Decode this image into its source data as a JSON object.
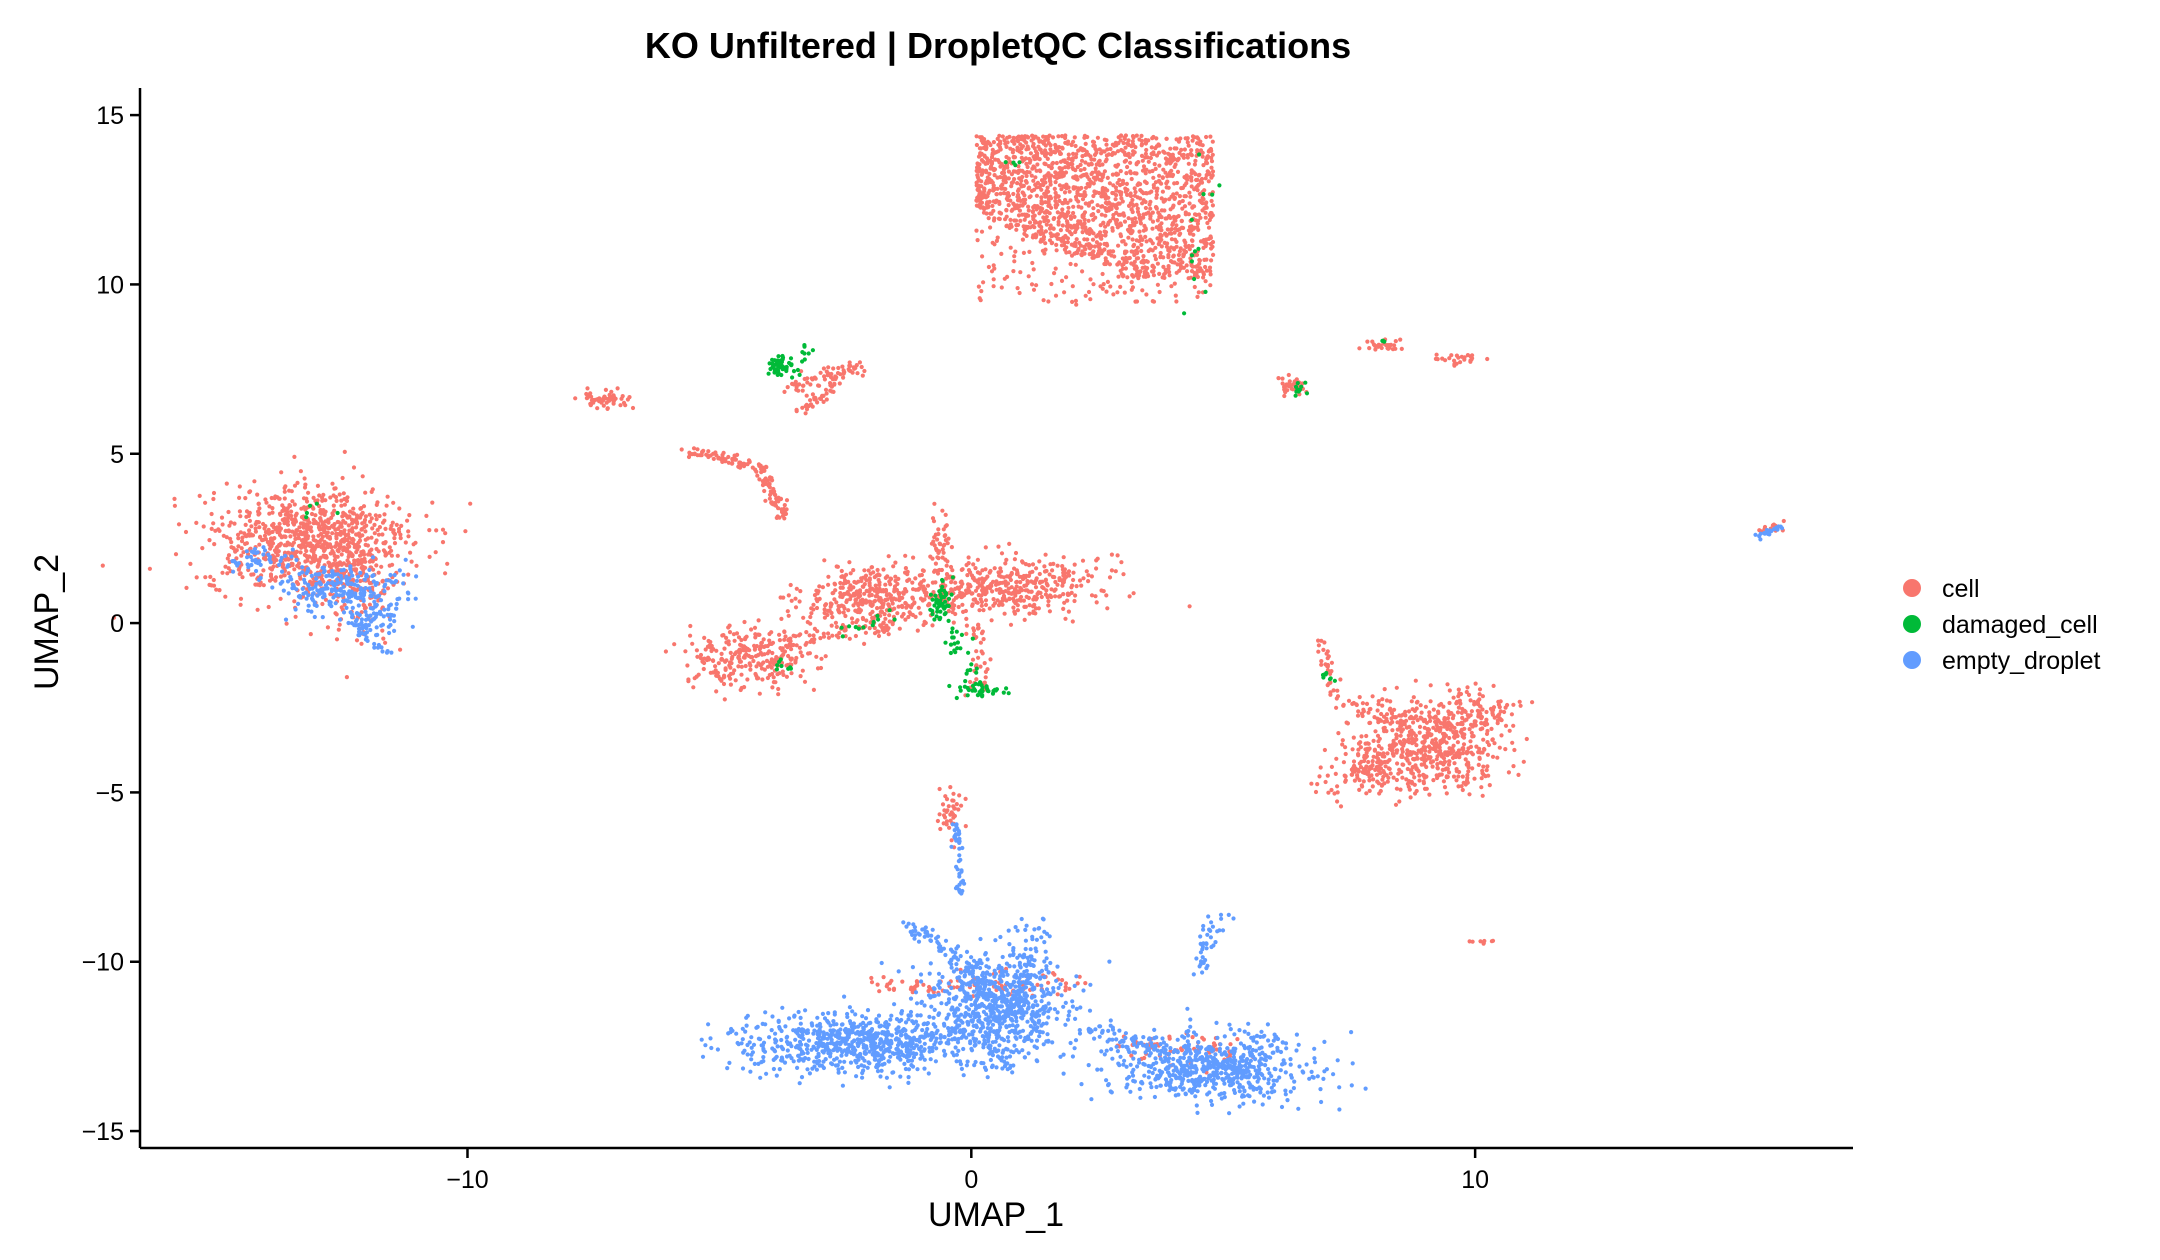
{
  "chart_data": {
    "type": "scatter",
    "title": "KO Unfiltered | DropletQC Classifications",
    "xlabel": "UMAP_1",
    "ylabel": "UMAP_2",
    "xlim": [
      -16.5,
      17.5
    ],
    "ylim": [
      -15.5,
      15.8
    ],
    "x_ticks": [
      -10,
      0,
      10
    ],
    "x_tick_labels": [
      "−10",
      "0",
      "10"
    ],
    "y_ticks": [
      -15,
      -10,
      -5,
      0,
      5,
      10,
      15
    ],
    "y_tick_labels": [
      "−15",
      "−10",
      "−5",
      "0",
      "5",
      "10",
      "15"
    ],
    "grid": false,
    "legend_position": "right",
    "series": [
      {
        "name": "cell",
        "color": "#F8766D",
        "clusters": [
          {
            "cx": 2.6,
            "cy": 12.0,
            "sx": 1.7,
            "sy": 1.3,
            "n": 1800,
            "shape": "rect",
            "x0": 0.1,
            "x1": 4.8,
            "y0": 9.4,
            "y1": 14.4
          },
          {
            "cx": -13.1,
            "cy": 2.4,
            "sx": 1.0,
            "sy": 0.8,
            "n": 900,
            "shape": "ellipse"
          },
          {
            "cx": -12.2,
            "cy": 1.0,
            "sx": 0.4,
            "sy": 0.8,
            "n": 120,
            "shape": "ellipse"
          },
          {
            "cx": -2.0,
            "cy": 0.7,
            "sx": 0.7,
            "sy": 0.45,
            "n": 350,
            "shape": "ellipse"
          },
          {
            "cx": 0.6,
            "cy": 1.1,
            "sx": 1.0,
            "sy": 0.45,
            "n": 450,
            "shape": "ellipse"
          },
          {
            "cx": -4.4,
            "cy": -1.0,
            "sx": 0.6,
            "sy": 0.45,
            "n": 280,
            "shape": "ellipse"
          },
          {
            "cx": -0.6,
            "cy": 2.4,
            "sx": 0.1,
            "sy": 0.5,
            "n": 40,
            "shape": "ellipse"
          },
          {
            "cx": 9.3,
            "cy": -3.5,
            "sx": 0.65,
            "sy": 0.65,
            "n": 500,
            "shape": "ellipse"
          },
          {
            "cx": 8.1,
            "cy": -4.2,
            "sx": 0.5,
            "sy": 0.45,
            "n": 120,
            "shape": "ellipse"
          },
          {
            "cx": 10.2,
            "cy": -2.6,
            "sx": 0.4,
            "sy": 0.25,
            "n": 60,
            "shape": "ellipse"
          },
          {
            "cx": -7.3,
            "cy": 6.6,
            "sx": 0.25,
            "sy": 0.12,
            "n": 60,
            "shape": "ellipse"
          },
          {
            "cx": 6.4,
            "cy": 7.0,
            "sx": 0.15,
            "sy": 0.15,
            "n": 40,
            "shape": "ellipse"
          },
          {
            "cx": 8.2,
            "cy": 8.2,
            "sx": 0.25,
            "sy": 0.08,
            "n": 30,
            "shape": "ellipse"
          },
          {
            "cx": 9.6,
            "cy": 7.8,
            "sx": 0.25,
            "sy": 0.1,
            "n": 25,
            "shape": "ellipse"
          },
          {
            "cx": 10.1,
            "cy": -9.4,
            "sx": 0.1,
            "sy": 0.05,
            "n": 8,
            "shape": "ellipse"
          },
          {
            "cx": -0.4,
            "cy": -5.6,
            "sx": 0.15,
            "sy": 0.3,
            "n": 40,
            "shape": "ellipse"
          },
          {
            "cx": 15.9,
            "cy": 2.8,
            "sx": 0.15,
            "sy": 0.08,
            "n": 15,
            "shape": "ellipse"
          }
        ],
        "strands": [
          {
            "x0": -5.6,
            "y0": 5.1,
            "x1": -4.2,
            "y1": 4.6,
            "n": 70,
            "w": 0.08
          },
          {
            "x0": -4.2,
            "y0": 4.6,
            "x1": -3.7,
            "y1": 3.1,
            "n": 70,
            "w": 0.07
          },
          {
            "x0": -3.6,
            "y0": 7.0,
            "x1": -2.2,
            "y1": 7.6,
            "n": 60,
            "w": 0.1
          },
          {
            "x0": -3.4,
            "y0": 6.2,
            "x1": -2.6,
            "y1": 7.2,
            "n": 40,
            "w": 0.08
          },
          {
            "x0": 6.9,
            "y0": -0.5,
            "x1": 7.3,
            "y1": -2.2,
            "n": 30,
            "w": 0.08
          },
          {
            "x0": 7.4,
            "y0": -2.3,
            "x1": 8.8,
            "y1": -3.0,
            "n": 60,
            "w": 0.25
          },
          {
            "x0": 7.0,
            "y0": -4.9,
            "x1": 8.5,
            "y1": -3.8,
            "n": 50,
            "w": 0.15
          },
          {
            "x0": 0.1,
            "y0": 0.0,
            "x1": 0.2,
            "y1": -2.0,
            "n": 40,
            "w": 0.12
          },
          {
            "x0": -3.5,
            "y0": -0.5,
            "x1": -1.5,
            "y1": -0.2,
            "n": 40,
            "w": 0.15
          },
          {
            "x0": -0.5,
            "y0": -10.7,
            "x1": 2.2,
            "y1": -10.6,
            "n": 60,
            "w": 0.2
          },
          {
            "x0": 3.0,
            "y0": -12.3,
            "x1": 5.2,
            "y1": -12.8,
            "n": 60,
            "w": 0.3
          },
          {
            "x0": -2.2,
            "y0": -10.6,
            "x1": -0.6,
            "y1": -10.8,
            "n": 30,
            "w": 0.15
          }
        ]
      },
      {
        "name": "damaged_cell",
        "color": "#00BA38",
        "clusters": [
          {
            "cx": -3.8,
            "cy": 7.6,
            "sx": 0.12,
            "sy": 0.15,
            "n": 45,
            "shape": "ellipse"
          },
          {
            "cx": -0.6,
            "cy": 0.7,
            "sx": 0.1,
            "sy": 0.25,
            "n": 45,
            "shape": "ellipse"
          },
          {
            "cx": 0.2,
            "cy": -2.0,
            "sx": 0.25,
            "sy": 0.08,
            "n": 30,
            "shape": "ellipse"
          },
          {
            "cx": 6.5,
            "cy": 6.9,
            "sx": 0.1,
            "sy": 0.12,
            "n": 10,
            "shape": "ellipse"
          },
          {
            "cx": 7.1,
            "cy": -1.6,
            "sx": 0.08,
            "sy": 0.12,
            "n": 8,
            "shape": "ellipse"
          },
          {
            "cx": -3.7,
            "cy": -1.2,
            "sx": 0.12,
            "sy": 0.1,
            "n": 8,
            "shape": "ellipse"
          },
          {
            "cx": 4.5,
            "cy": 11.5,
            "sx": 0.3,
            "sy": 1.2,
            "n": 12,
            "shape": "ellipse"
          },
          {
            "cx": 0.8,
            "cy": 13.5,
            "sx": 0.1,
            "sy": 0.1,
            "n": 4,
            "shape": "ellipse"
          },
          {
            "cx": -13.0,
            "cy": 3.4,
            "sx": 0.3,
            "sy": 0.15,
            "n": 5,
            "shape": "ellipse"
          },
          {
            "cx": 8.1,
            "cy": 8.3,
            "sx": 0.08,
            "sy": 0.05,
            "n": 3,
            "shape": "ellipse"
          }
        ],
        "strands": [
          {
            "x0": -0.6,
            "y0": 0.2,
            "x1": 0.2,
            "y1": -2.0,
            "n": 35,
            "w": 0.12
          },
          {
            "x0": -2.8,
            "y0": -0.4,
            "x1": -1.6,
            "y1": 0.3,
            "n": 12,
            "w": 0.1
          },
          {
            "x0": -3.6,
            "y0": 7.2,
            "x1": -3.3,
            "y1": 8.2,
            "n": 12,
            "w": 0.08
          }
        ]
      },
      {
        "name": "empty_droplet",
        "color": "#619CFF",
        "clusters": [
          {
            "cx": -2.2,
            "cy": -12.4,
            "sx": 1.2,
            "sy": 0.45,
            "n": 750,
            "shape": "ellipse"
          },
          {
            "cx": 0.5,
            "cy": -11.3,
            "sx": 0.7,
            "sy": 0.75,
            "n": 700,
            "shape": "ellipse"
          },
          {
            "cx": 4.8,
            "cy": -13.1,
            "sx": 0.95,
            "sy": 0.5,
            "n": 650,
            "shape": "ellipse"
          },
          {
            "cx": -12.6,
            "cy": 1.0,
            "sx": 0.6,
            "sy": 0.35,
            "n": 220,
            "shape": "ellipse"
          },
          {
            "cx": -14.1,
            "cy": 1.9,
            "sx": 0.3,
            "sy": 0.2,
            "n": 40,
            "shape": "ellipse"
          },
          {
            "cx": -11.8,
            "cy": 0.2,
            "sx": 0.25,
            "sy": 0.3,
            "n": 60,
            "shape": "ellipse"
          }
        ],
        "strands": [
          {
            "x0": -1.3,
            "y0": -8.8,
            "x1": 0.4,
            "y1": -10.6,
            "n": 70,
            "w": 0.1
          },
          {
            "x0": 1.2,
            "y0": -8.9,
            "x1": 0.9,
            "y1": -11.5,
            "n": 80,
            "w": 0.18
          },
          {
            "x0": -0.3,
            "y0": -5.8,
            "x1": -0.2,
            "y1": -8.0,
            "n": 45,
            "w": 0.05
          },
          {
            "x0": 4.9,
            "y0": -8.6,
            "x1": 4.5,
            "y1": -10.3,
            "n": 40,
            "w": 0.1
          },
          {
            "x0": 2.3,
            "y0": -12.0,
            "x1": 4.0,
            "y1": -12.6,
            "n": 60,
            "w": 0.15
          },
          {
            "x0": 0.4,
            "y0": -12.6,
            "x1": 0.8,
            "y1": -13.2,
            "n": 15,
            "w": 0.05
          },
          {
            "x0": 15.6,
            "y0": 2.5,
            "x1": 16.1,
            "y1": 2.9,
            "n": 20,
            "w": 0.04
          },
          {
            "x0": -12.4,
            "y0": 0.0,
            "x1": -11.6,
            "y1": -0.8,
            "n": 30,
            "w": 0.1
          }
        ]
      }
    ]
  },
  "legend": {
    "items": [
      {
        "label": "cell",
        "color": "#F8766D"
      },
      {
        "label": "damaged_cell",
        "color": "#00BA38"
      },
      {
        "label": "empty_droplet",
        "color": "#619CFF"
      }
    ]
  }
}
